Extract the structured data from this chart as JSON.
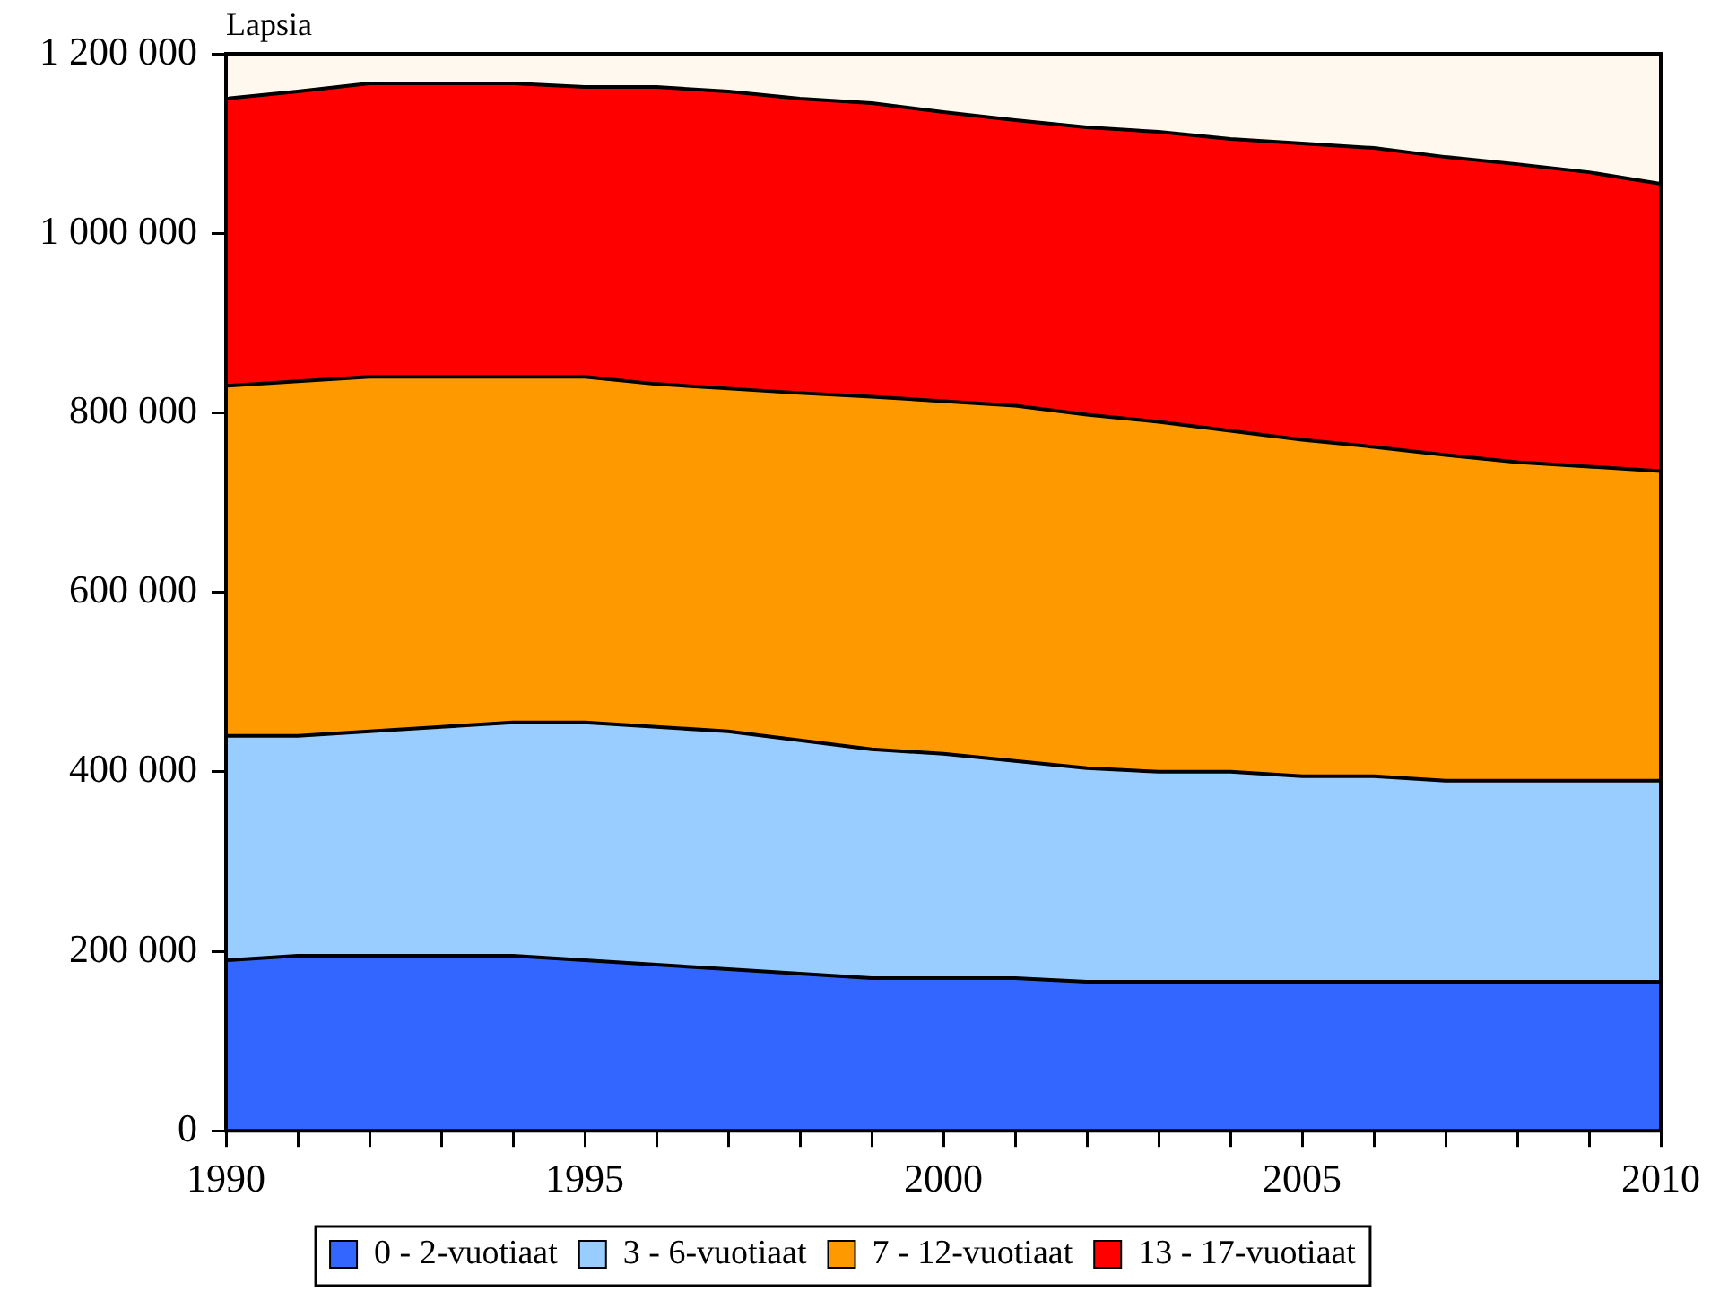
{
  "chart_data": {
    "type": "area",
    "stacked": true,
    "ylabel": "Lapsia",
    "x": [
      1990,
      1991,
      1992,
      1993,
      1994,
      1995,
      1996,
      1997,
      1998,
      1999,
      2000,
      2001,
      2002,
      2003,
      2004,
      2005,
      2006,
      2007,
      2008,
      2009,
      2010
    ],
    "series": [
      {
        "name": "0 - 2-vuotiaat",
        "color": "#3366ff",
        "values": [
          190000,
          195000,
          195000,
          195000,
          195000,
          190000,
          185000,
          180000,
          175000,
          170000,
          170000,
          170000,
          166000,
          166000,
          166000,
          166000,
          166000,
          166000,
          166000,
          166000,
          166000
        ]
      },
      {
        "name": "3 - 6-vuotiaat",
        "color": "#99ccff",
        "values": [
          250000,
          245000,
          250000,
          255000,
          260000,
          265000,
          265000,
          265000,
          260000,
          255000,
          250000,
          242000,
          238000,
          234000,
          234000,
          229000,
          229000,
          224000,
          224000,
          224000,
          224000
        ]
      },
      {
        "name": "7 - 12-vuotiaat",
        "color": "#ff9900",
        "values": [
          390000,
          395000,
          395000,
          390000,
          385000,
          385000,
          382000,
          382000,
          387000,
          393000,
          393000,
          396000,
          394000,
          390000,
          380000,
          375000,
          367000,
          363000,
          355000,
          350000,
          345000
        ]
      },
      {
        "name": "13 - 17-vuotiaat",
        "color": "#ff0000",
        "values": [
          320000,
          323000,
          327000,
          327000,
          327000,
          323000,
          331000,
          331000,
          328000,
          327000,
          322000,
          318000,
          320000,
          323000,
          325000,
          330000,
          333000,
          332000,
          332000,
          328000,
          320000
        ]
      }
    ],
    "xlim": [
      1990,
      2010
    ],
    "xticks": [
      1990,
      {
        "value": 1991,
        "label": null
      },
      {
        "value": 1992,
        "label": null
      },
      {
        "value": 1993,
        "label": null
      },
      {
        "value": 1994,
        "label": null
      },
      1995,
      {
        "value": 1996,
        "label": null
      },
      {
        "value": 1997,
        "label": null
      },
      {
        "value": 1998,
        "label": null
      },
      {
        "value": 1999,
        "label": null
      },
      2000,
      {
        "value": 2001,
        "label": null
      },
      {
        "value": 2002,
        "label": null
      },
      {
        "value": 2003,
        "label": null
      },
      {
        "value": 2004,
        "label": null
      },
      2005,
      {
        "value": 2006,
        "label": null
      },
      {
        "value": 2007,
        "label": null
      },
      {
        "value": 2008,
        "label": null
      },
      {
        "value": 2009,
        "label": null
      },
      2010
    ],
    "ylim": [
      0,
      1200000
    ],
    "yticks": [
      0,
      {
        "value": 200000,
        "label": "200 000"
      },
      {
        "value": 400000,
        "label": "400 000"
      },
      {
        "value": 600000,
        "label": "600 000"
      },
      {
        "value": 800000,
        "label": "800 000"
      },
      {
        "value": 1000000,
        "label": "1 000 000"
      },
      {
        "value": 1200000,
        "label": "1 200 000"
      }
    ],
    "legend": "bottom",
    "marker": "none",
    "line_style": "solid"
  }
}
